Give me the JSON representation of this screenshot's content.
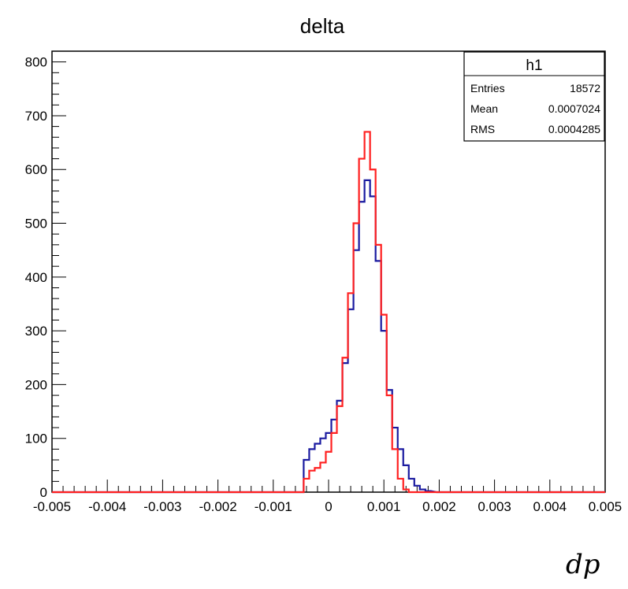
{
  "chart_data": {
    "type": "histogram",
    "title": "delta",
    "xlabel": "dp",
    "ylabel": "",
    "xlim": [
      -0.005,
      0.005
    ],
    "ylim": [
      0,
      820
    ],
    "grid": false,
    "x_ticks": [
      "-0.005",
      "-0.004",
      "-0.003",
      "-0.002",
      "-0.001",
      "0",
      "0.001",
      "0.002",
      "0.003",
      "0.004",
      "0.005"
    ],
    "x_tick_values": [
      -0.005,
      -0.004,
      -0.003,
      -0.002,
      -0.001,
      0,
      0.001,
      0.002,
      0.003,
      0.004,
      0.005
    ],
    "y_ticks": [
      "0",
      "100",
      "200",
      "300",
      "400",
      "500",
      "600",
      "700",
      "800"
    ],
    "y_tick_values": [
      0,
      100,
      200,
      300,
      400,
      500,
      600,
      700,
      800
    ],
    "stats_box": {
      "title": "h1",
      "rows": [
        {
          "label": "Entries",
          "value": "18572"
        },
        {
          "label": "Mean",
          "value": "0.0007024"
        },
        {
          "label": "RMS",
          "value": "0.0004285"
        }
      ],
      "placement": "top-right"
    },
    "series": [
      {
        "color": "#1a1aa0",
        "x": [
          -0.0005,
          -0.0004,
          -0.0003,
          -0.0002,
          -0.0001,
          0.0,
          0.0001,
          0.0002,
          0.0003,
          0.0004,
          0.0005,
          0.0006,
          0.0007,
          0.0008,
          0.0009,
          0.001,
          0.0011,
          0.0012,
          0.0013,
          0.0014,
          0.0015,
          0.0016,
          0.0017,
          0.0018,
          0.002
        ],
        "y": [
          0,
          60,
          80,
          90,
          100,
          110,
          135,
          170,
          240,
          340,
          450,
          540,
          580,
          550,
          430,
          300,
          190,
          120,
          80,
          50,
          25,
          12,
          5,
          2,
          0
        ]
      },
      {
        "color": "#ff2020",
        "x": [
          -0.0005,
          -0.0004,
          -0.0003,
          -0.0002,
          -0.0001,
          0.0,
          0.0001,
          0.0002,
          0.0003,
          0.0004,
          0.0005,
          0.0006,
          0.0007,
          0.0008,
          0.0009,
          0.001,
          0.0011,
          0.0012,
          0.0013,
          0.0014,
          0.0015
        ],
        "y": [
          0,
          25,
          40,
          45,
          55,
          75,
          110,
          160,
          250,
          370,
          500,
          620,
          670,
          600,
          460,
          330,
          180,
          80,
          25,
          5,
          0
        ]
      }
    ]
  }
}
